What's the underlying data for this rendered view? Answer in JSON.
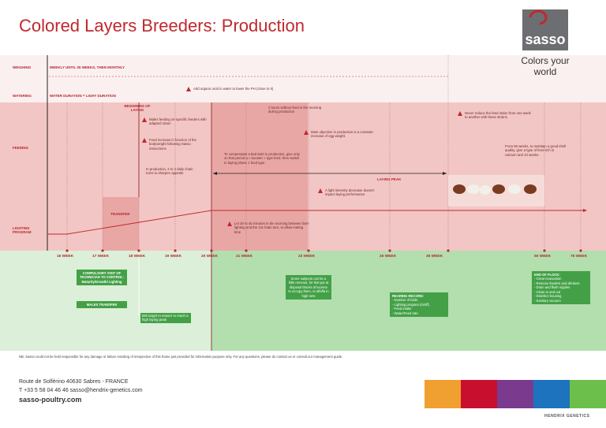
{
  "header": {
    "title": "Colored Layers Breeders: Production",
    "brand": "sasso",
    "tagline": "Colors your world"
  },
  "rows": [
    "WEIGHING",
    "WATERING",
    "FEEDING",
    "LIGHTING PROGRAM"
  ],
  "weighing": "WEEKLY UNTIL 25 WEEKS, THEN MONTHLY",
  "watering": "WATER DURATION = LIGHT DURATION",
  "water_note": "Add organic acid in water to lower the PH (close to 6)",
  "milestones": {
    "laying_start": "BEGINNING OF LAYING",
    "laying_peak": "LAYING PEAK",
    "transfer": "TRANSFER"
  },
  "notes": [
    "Males feeding on specific feeders with adapted ration",
    "Feed increase in function of the bodyweight following Sasso instructions",
    "In production, 2 to 4 daily chain turns to sharpen appetite",
    "2 hours without feed in the morning during production",
    "Main objective in production is a constant increase of egg weight.",
    "To compensate a bad start in production, give only on that period a « booster » type feed, then switch to laying phase 1 feed type.",
    "A light intensity decrease doesn't impact laying performance",
    "Never reduce the feed ration from one week to another with these strains.",
    "From 50 weeks, to maintain a good shell quality, give a type of feed rich in calcium and 10 weeks.",
    "Let 30 to 45 minutes in the morning between farm lighting and the 1st chain turn, to allow mating time"
  ],
  "weeks": [
    "16 WEEK",
    "17 WEEK",
    "18 WEEK",
    "19 WEEK",
    "20 WEEK",
    "21 WEEK",
    "23 WEEK",
    "26 WEEK",
    "35 WEEK",
    "50 WEEK",
    "75 WEEK"
  ],
  "visit_box": {
    "title": "COMPULSORY VISIT OF TECHNICIAN TO CONTROL:",
    "items": "Maturity/Growth/ Lighting",
    "transfer": "MALES TRANSFER"
  },
  "bw_note": "BW target to ensure to reach a high laying peak",
  "nervous_box": "Some subjects can be a little nervous, for that put at disposal blocks of lucerne to occupy them, or alfalfa in high nets",
  "record_box": {
    "title": "REARING RECORD:",
    "items": [
      "- Number of birds",
      "- Lighting program (in/off)",
      "- Feed intake",
      "- Water/Feed rate"
    ]
  },
  "end_box": {
    "title": "END OF FLOCK:",
    "items": [
      "- Great evacuation",
      "- Remove feeders and drinkers",
      "- Drain and flush nipples",
      "- Clean in and out",
      "- Disinfect housing",
      "- Sanitary vacuum"
    ]
  },
  "footer": {
    "disclaimer": "NB: Sasso could not be held responsible for any damage or failure resulting of irrespective of this frame just provided for information purpose only. For any questions, please do contact us or consult our management guide.",
    "address": "Route de Solférino  40630 Sabres - FRANCE",
    "contact": "T +33 5 58 04 46 46  sasso@hendrix-genetics.com",
    "website": "sasso-poultry.com",
    "partner": "HENDRIX GENETICS"
  }
}
